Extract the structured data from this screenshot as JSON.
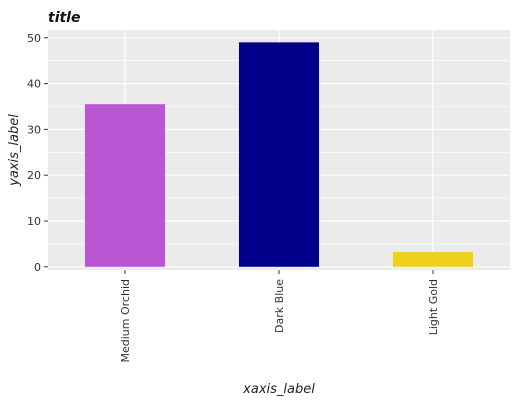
{
  "chart_data": {
    "type": "bar",
    "title": "title",
    "xlabel": "xaxis_label",
    "ylabel": "yaxis_label",
    "categories": [
      "Medium Orchid",
      "Dark Blue",
      "Light Gold"
    ],
    "values": [
      35.5,
      49,
      3.2
    ],
    "colors": [
      "#ba55d3",
      "#00008b",
      "#eed11b"
    ],
    "ylim": [
      -0.7,
      51.7
    ],
    "yticks": [
      0,
      10,
      20,
      30,
      40,
      50
    ],
    "grid": true,
    "background": "#ebebeb"
  }
}
